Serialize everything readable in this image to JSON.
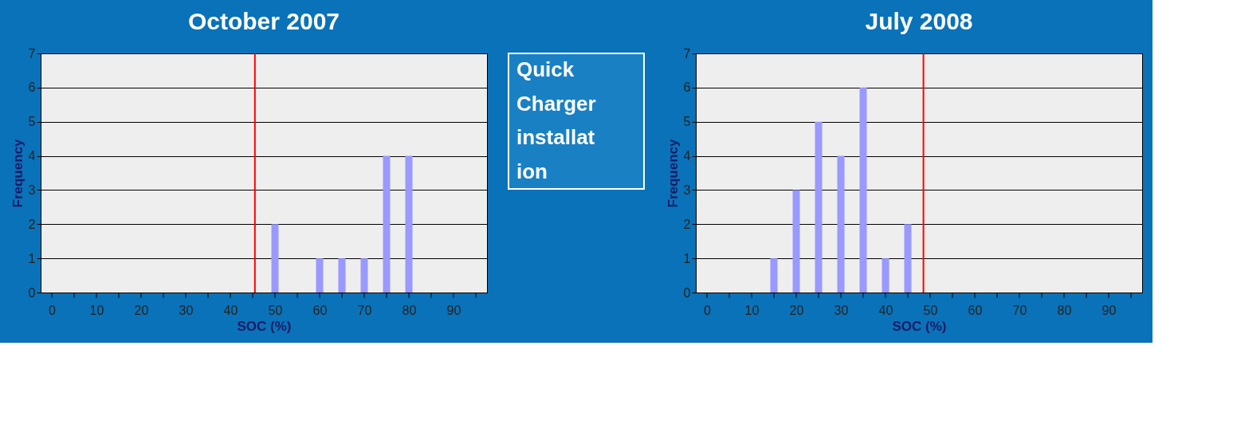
{
  "chart_data": [
    {
      "type": "bar",
      "title": "October 2007",
      "xlabel": "SOC (%)",
      "ylabel": "Frequency",
      "x": [
        0,
        5,
        10,
        15,
        20,
        25,
        30,
        35,
        40,
        45,
        50,
        55,
        60,
        65,
        70,
        75,
        80,
        85,
        90,
        95
      ],
      "values": [
        0,
        0,
        0,
        0,
        0,
        0,
        0,
        0,
        0,
        0,
        2,
        0,
        1,
        1,
        1,
        4,
        4,
        0,
        0,
        0
      ],
      "color": "#9999ff",
      "xlim": [
        -2.5,
        97.5
      ],
      "xticks": [
        0,
        {
          "value": 5,
          "label": null
        },
        10,
        {
          "value": 15,
          "label": null
        },
        20,
        {
          "value": 25,
          "label": null
        },
        30,
        {
          "value": 35,
          "label": null
        },
        40,
        {
          "value": 45,
          "label": null
        },
        50,
        {
          "value": 55,
          "label": null
        },
        60,
        {
          "value": 65,
          "label": null
        },
        70,
        {
          "value": 75,
          "label": null
        },
        80,
        {
          "value": 85,
          "label": null
        },
        90,
        {
          "value": 95,
          "label": null
        }
      ],
      "ylim": [
        0,
        7
      ],
      "yticks": [
        0,
        1,
        2,
        3,
        4,
        5,
        6,
        7
      ],
      "grid": "y",
      "ref_lines": [
        {
          "axis": "x",
          "value": 45.5,
          "color": "#ff0000"
        }
      ]
    },
    {
      "type": "other",
      "annotations": [
        "Quick",
        "Charger",
        "installat",
        "ion"
      ]
    },
    {
      "type": "bar",
      "title": "July 2008",
      "xlabel": "SOC (%)",
      "ylabel": "Frequency",
      "x": [
        0,
        5,
        10,
        15,
        20,
        25,
        30,
        35,
        40,
        45,
        50,
        55,
        60,
        65,
        70,
        75,
        80,
        85,
        90,
        95
      ],
      "values": [
        0,
        0,
        0,
        1,
        3,
        5,
        4,
        6,
        1,
        2,
        0,
        0,
        0,
        0,
        0,
        0,
        0,
        0,
        0,
        0
      ],
      "color": "#9999ff",
      "xlim": [
        -2.5,
        97.5
      ],
      "xticks": [
        0,
        {
          "value": 5,
          "label": null
        },
        10,
        {
          "value": 15,
          "label": null
        },
        20,
        {
          "value": 25,
          "label": null
        },
        30,
        {
          "value": 35,
          "label": null
        },
        40,
        {
          "value": 45,
          "label": null
        },
        50,
        {
          "value": 55,
          "label": null
        },
        60,
        {
          "value": 65,
          "label": null
        },
        70,
        {
          "value": 75,
          "label": null
        },
        80,
        {
          "value": 85,
          "label": null
        },
        90,
        {
          "value": 95,
          "label": null
        }
      ],
      "ylim": [
        0,
        7
      ],
      "yticks": [
        0,
        1,
        2,
        3,
        4,
        5,
        6,
        7
      ],
      "grid": "y",
      "ref_lines": [
        {
          "axis": "x",
          "value": 48.5,
          "color": "#ff0000"
        }
      ]
    }
  ]
}
